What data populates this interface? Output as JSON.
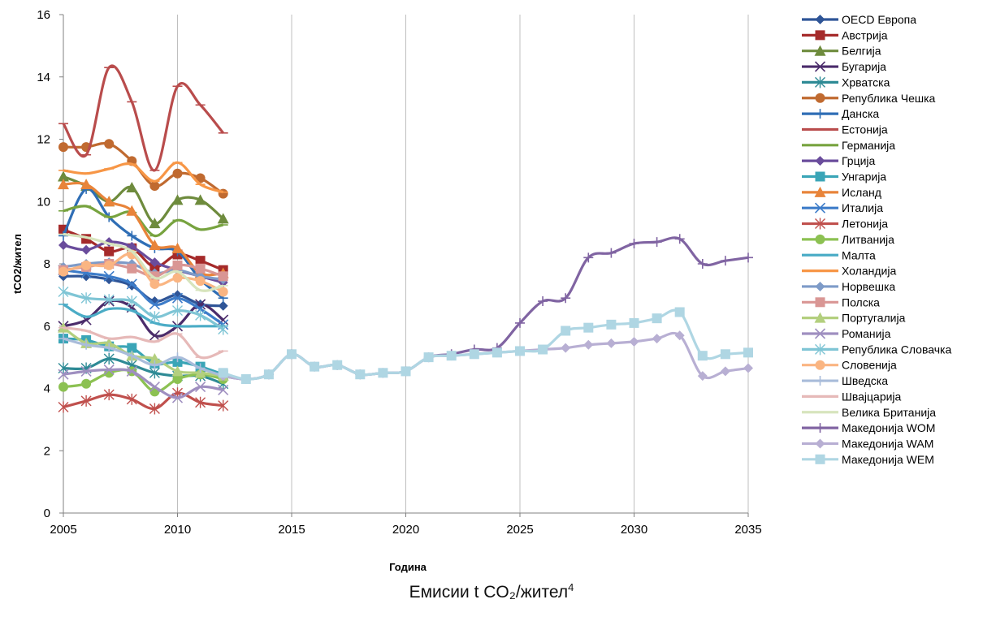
{
  "caption": {
    "text": "Емисии  t CO₂/жител",
    "sup": "4"
  },
  "chart_data": {
    "type": "line",
    "xlabel": "Година",
    "ylabel": "tCO2/жител",
    "xlim": [
      2005,
      2035
    ],
    "ylim": [
      0,
      16
    ],
    "xticks": [
      2005,
      2010,
      2015,
      2020,
      2025,
      2030,
      2035
    ],
    "yticks": [
      0,
      2,
      4,
      6,
      8,
      10,
      12,
      14,
      16
    ],
    "grid": "vertical",
    "legend": "right",
    "series": [
      {
        "name": "OECD Европа",
        "color": "#2F5597",
        "marker": "diamond",
        "x": [
          2005,
          2006,
          2007,
          2008,
          2009,
          2010,
          2011,
          2012
        ],
        "values": [
          7.6,
          7.6,
          7.5,
          7.3,
          6.8,
          7.0,
          6.7,
          6.65
        ]
      },
      {
        "name": "Австрија",
        "color": "#A52A2A",
        "marker": "square",
        "x": [
          2005,
          2006,
          2007,
          2008,
          2009,
          2010,
          2011,
          2012
        ],
        "values": [
          9.1,
          8.8,
          8.4,
          8.5,
          7.9,
          8.3,
          8.1,
          7.8
        ]
      },
      {
        "name": "Белгија",
        "color": "#6E8B3D",
        "marker": "triangle",
        "x": [
          2005,
          2006,
          2007,
          2008,
          2009,
          2010,
          2011,
          2012
        ],
        "values": [
          10.8,
          10.5,
          10.0,
          10.45,
          9.3,
          10.05,
          10.05,
          9.45
        ]
      },
      {
        "name": "Бугарија",
        "color": "#4B2C6B",
        "marker": "x",
        "x": [
          2005,
          2006,
          2007,
          2008,
          2009,
          2010,
          2011,
          2012
        ],
        "values": [
          6.0,
          6.2,
          6.8,
          6.6,
          5.7,
          6.0,
          6.7,
          6.2
        ]
      },
      {
        "name": "Хрватска",
        "color": "#2E8A95",
        "marker": "star",
        "x": [
          2005,
          2006,
          2007,
          2008,
          2009,
          2010,
          2011,
          2012
        ],
        "values": [
          4.65,
          4.65,
          4.95,
          4.75,
          4.5,
          4.4,
          4.4,
          4.15
        ]
      },
      {
        "name": "Република Чешка",
        "color": "#C06A30",
        "marker": "circle",
        "x": [
          2005,
          2006,
          2007,
          2008,
          2009,
          2010,
          2011,
          2012
        ],
        "values": [
          11.75,
          11.75,
          11.85,
          11.3,
          10.5,
          10.9,
          10.75,
          10.25
        ]
      },
      {
        "name": "Данска",
        "color": "#2F6EB5",
        "marker": "plus",
        "x": [
          2005,
          2006,
          2007,
          2008,
          2009,
          2010,
          2011,
          2012
        ],
        "values": [
          8.9,
          10.4,
          9.5,
          8.9,
          8.5,
          8.4,
          7.5,
          6.9
        ]
      },
      {
        "name": "Естонија",
        "color": "#B94C4C",
        "marker": "dash",
        "x": [
          2005,
          2006,
          2007,
          2008,
          2009,
          2010,
          2011,
          2012
        ],
        "values": [
          12.5,
          11.5,
          14.3,
          13.2,
          11.0,
          13.7,
          13.1,
          12.2
        ]
      },
      {
        "name": "Германија",
        "color": "#77A33F",
        "marker": "dash",
        "x": [
          2005,
          2006,
          2007,
          2008,
          2009,
          2010,
          2011,
          2012
        ],
        "values": [
          9.7,
          9.85,
          9.5,
          9.65,
          8.9,
          9.4,
          9.1,
          9.25
        ]
      },
      {
        "name": "Грција",
        "color": "#6A4C9C",
        "marker": "diamond",
        "x": [
          2005,
          2006,
          2007,
          2008,
          2009,
          2010,
          2011,
          2012
        ],
        "values": [
          8.6,
          8.45,
          8.7,
          8.55,
          8.05,
          7.8,
          7.6,
          7.4
        ]
      },
      {
        "name": "Унгарија",
        "color": "#3AA5B7",
        "marker": "square",
        "x": [
          2005,
          2006,
          2007,
          2008,
          2009,
          2010,
          2011,
          2012
        ],
        "values": [
          5.6,
          5.55,
          5.35,
          5.3,
          4.8,
          4.85,
          4.7,
          4.45
        ]
      },
      {
        "name": "Исланд",
        "color": "#E8843A",
        "marker": "triangle",
        "x": [
          2005,
          2006,
          2007,
          2008,
          2009,
          2010,
          2011,
          2012
        ],
        "values": [
          10.55,
          10.55,
          10.0,
          9.7,
          8.6,
          8.5,
          7.7,
          7.7
        ]
      },
      {
        "name": "Италија",
        "color": "#3D7CC9",
        "marker": "x",
        "x": [
          2005,
          2006,
          2007,
          2008,
          2009,
          2010,
          2011,
          2012
        ],
        "values": [
          7.8,
          7.7,
          7.6,
          7.35,
          6.7,
          6.9,
          6.55,
          6.05
        ]
      },
      {
        "name": "Летонија",
        "color": "#C0504D",
        "marker": "star",
        "x": [
          2005,
          2006,
          2007,
          2008,
          2009,
          2010,
          2011,
          2012
        ],
        "values": [
          3.4,
          3.6,
          3.8,
          3.65,
          3.35,
          3.85,
          3.55,
          3.45
        ]
      },
      {
        "name": "Литванија",
        "color": "#8CC152",
        "marker": "circle",
        "x": [
          2005,
          2006,
          2007,
          2008,
          2009,
          2010,
          2011,
          2012
        ],
        "values": [
          4.05,
          4.15,
          4.5,
          4.55,
          3.9,
          4.3,
          4.45,
          4.3
        ]
      },
      {
        "name": "Малта",
        "color": "#4BACC6",
        "marker": "dash",
        "x": [
          2005,
          2006,
          2007,
          2008,
          2009,
          2010,
          2011,
          2012
        ],
        "values": [
          6.7,
          6.3,
          6.55,
          6.5,
          6.1,
          6.0,
          6.0,
          6.0
        ]
      },
      {
        "name": "Холандија",
        "color": "#F79646",
        "marker": "dash",
        "x": [
          2005,
          2006,
          2007,
          2008,
          2009,
          2010,
          2011,
          2012
        ],
        "values": [
          11.0,
          10.9,
          11.05,
          11.2,
          10.65,
          11.25,
          10.55,
          10.3
        ]
      },
      {
        "name": "Норвешка",
        "color": "#7E9BC8",
        "marker": "diamond",
        "x": [
          2005,
          2006,
          2007,
          2008,
          2009,
          2010,
          2011,
          2012
        ],
        "values": [
          7.9,
          8.0,
          8.05,
          8.0,
          7.7,
          7.8,
          7.6,
          7.5
        ]
      },
      {
        "name": "Полска",
        "color": "#D99694",
        "marker": "square",
        "x": [
          2005,
          2006,
          2007,
          2008,
          2009,
          2010,
          2011,
          2012
        ],
        "values": [
          7.8,
          7.9,
          8.0,
          7.85,
          7.6,
          7.95,
          7.85,
          7.6
        ]
      },
      {
        "name": "Португалија",
        "color": "#B3CF7E",
        "marker": "triangle",
        "x": [
          2005,
          2006,
          2007,
          2008,
          2009,
          2010,
          2011,
          2012
        ],
        "values": [
          5.95,
          5.45,
          5.45,
          5.05,
          4.95,
          4.55,
          4.5,
          4.4
        ]
      },
      {
        "name": "Романија",
        "color": "#9F8FC0",
        "marker": "x",
        "x": [
          2005,
          2006,
          2007,
          2008,
          2009,
          2010,
          2011,
          2012
        ],
        "values": [
          4.45,
          4.55,
          4.6,
          4.55,
          4.05,
          3.7,
          4.05,
          3.95
        ]
      },
      {
        "name": "Република Словачка",
        "color": "#7FC5D5",
        "marker": "star",
        "x": [
          2005,
          2006,
          2007,
          2008,
          2009,
          2010,
          2011,
          2012
        ],
        "values": [
          7.1,
          6.9,
          6.85,
          6.8,
          6.3,
          6.5,
          6.35,
          5.9
        ]
      },
      {
        "name": "Словенија",
        "color": "#FAB582",
        "marker": "circle",
        "x": [
          2005,
          2006,
          2007,
          2008,
          2009,
          2010,
          2011,
          2012
        ],
        "values": [
          7.75,
          7.95,
          7.95,
          8.3,
          7.35,
          7.55,
          7.45,
          7.1
        ]
      },
      {
        "name": "Шведска",
        "color": "#A9BCDA",
        "marker": "plus",
        "x": [
          2005,
          2006,
          2007,
          2008,
          2009,
          2010,
          2011,
          2012
        ],
        "values": [
          5.6,
          5.4,
          5.3,
          5.05,
          4.75,
          5.0,
          4.65,
          4.4
        ]
      },
      {
        "name": "Швајцарија",
        "color": "#E6B9B8",
        "marker": "dash",
        "x": [
          2005,
          2006,
          2007,
          2008,
          2009,
          2010,
          2011,
          2012
        ],
        "values": [
          5.95,
          5.85,
          5.6,
          5.65,
          5.5,
          5.75,
          5.0,
          5.2
        ]
      },
      {
        "name": "Велика Британија",
        "color": "#D7E4BD",
        "marker": "dash",
        "x": [
          2005,
          2006,
          2007,
          2008,
          2009,
          2010,
          2011,
          2012
        ],
        "values": [
          8.95,
          8.85,
          8.65,
          8.4,
          7.55,
          7.75,
          7.15,
          7.3
        ]
      },
      {
        "name": "Македонија WOM",
        "color": "#8064A2",
        "marker": "plus",
        "x": [
          2012,
          2013,
          2014,
          2015,
          2016,
          2017,
          2018,
          2019,
          2020,
          2021,
          2022,
          2023,
          2024,
          2025,
          2026,
          2027,
          2028,
          2029,
          2030,
          2031,
          2032,
          2033,
          2034,
          2035
        ],
        "values": [
          4.4,
          4.3,
          4.45,
          5.1,
          4.7,
          4.75,
          4.45,
          4.5,
          4.55,
          5.0,
          5.1,
          5.25,
          5.3,
          6.1,
          6.8,
          6.9,
          8.2,
          8.35,
          8.65,
          8.7,
          8.8,
          8.0,
          8.1,
          8.2
        ]
      },
      {
        "name": "Македонија WAM",
        "color": "#B8AFD3",
        "marker": "diamond",
        "x": [
          2012,
          2013,
          2014,
          2015,
          2016,
          2017,
          2018,
          2019,
          2020,
          2021,
          2022,
          2023,
          2024,
          2025,
          2026,
          2027,
          2028,
          2029,
          2030,
          2031,
          2032,
          2033,
          2034,
          2035
        ],
        "values": [
          4.4,
          4.3,
          4.45,
          5.1,
          4.7,
          4.75,
          4.45,
          4.5,
          4.55,
          5.0,
          5.05,
          5.1,
          5.15,
          5.2,
          5.25,
          5.3,
          5.4,
          5.45,
          5.5,
          5.6,
          5.7,
          4.4,
          4.55,
          4.65
        ]
      },
      {
        "name": "Македонија WEM",
        "color": "#AFD6E3",
        "marker": "square",
        "x": [
          2012,
          2013,
          2014,
          2015,
          2016,
          2017,
          2018,
          2019,
          2020,
          2021,
          2022,
          2023,
          2024,
          2025,
          2026,
          2027,
          2028,
          2029,
          2030,
          2031,
          2032,
          2033,
          2034,
          2035
        ],
        "values": [
          4.5,
          4.3,
          4.45,
          5.1,
          4.7,
          4.75,
          4.45,
          4.5,
          4.55,
          5.0,
          5.05,
          5.1,
          5.15,
          5.2,
          5.25,
          5.85,
          5.95,
          6.05,
          6.1,
          6.25,
          6.45,
          5.05,
          5.1,
          5.15
        ]
      }
    ]
  }
}
